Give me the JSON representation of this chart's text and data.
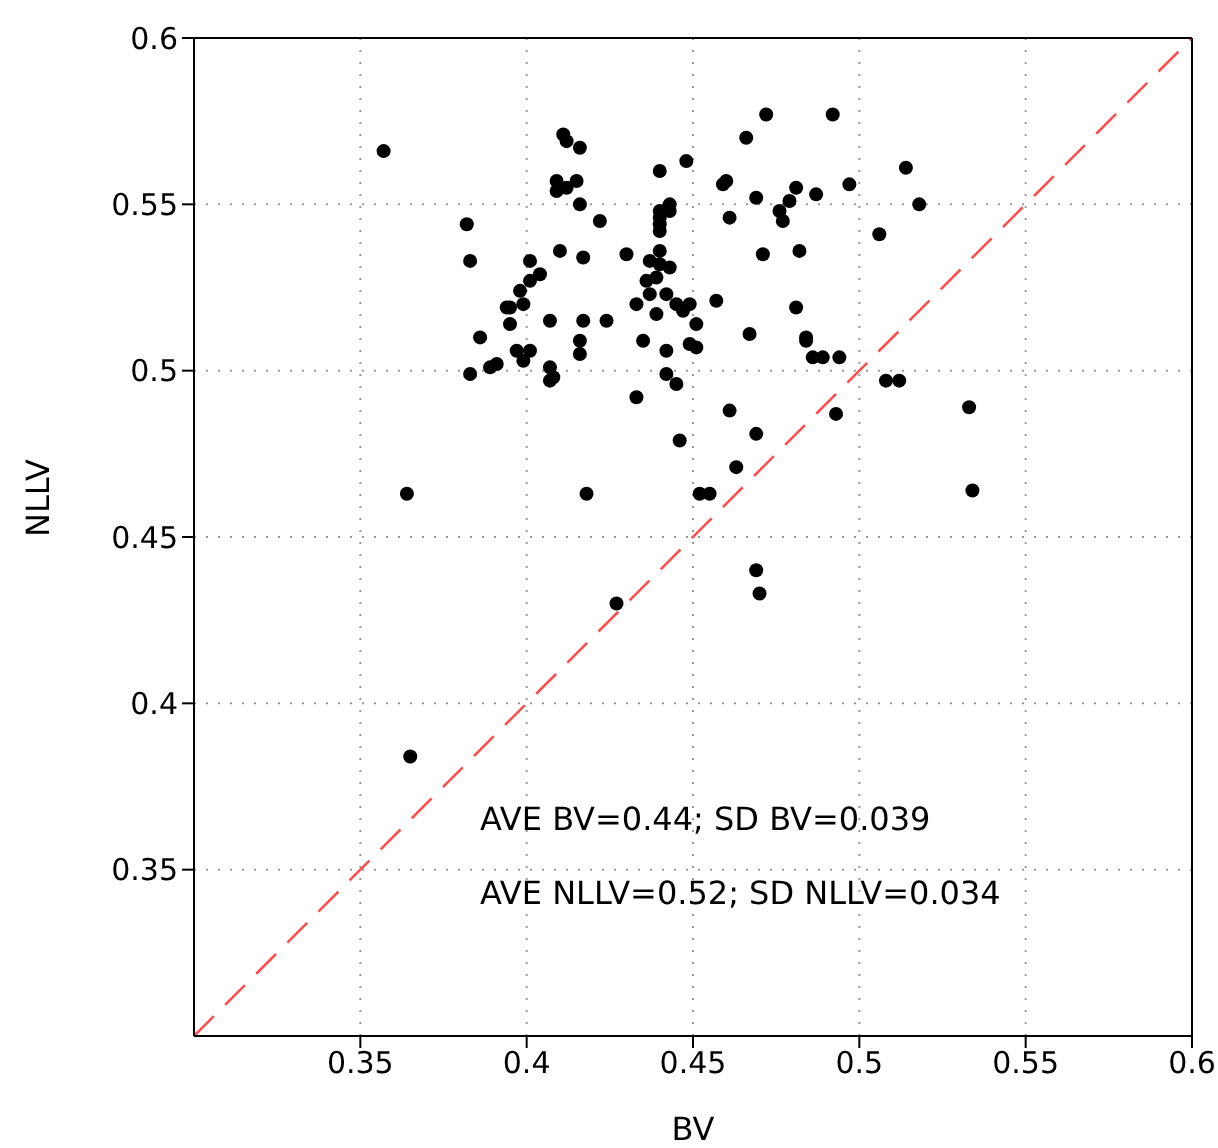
{
  "chart_data": {
    "type": "scatter",
    "xlabel": "BV",
    "ylabel": "NLLV",
    "xlim": [
      0.3,
      0.6
    ],
    "ylim": [
      0.3,
      0.6
    ],
    "xticks": [
      0.35,
      0.4,
      0.45,
      0.5,
      0.55,
      0.6
    ],
    "yticks": [
      0.35,
      0.4,
      0.45,
      0.5,
      0.55,
      0.6
    ],
    "grid": true,
    "annotations": [
      "AVE BV=0.44; SD BV=0.039",
      "AVE NLLV=0.52; SD NLLV=0.034"
    ],
    "series": [
      {
        "color": "#000000",
        "marker": "circle",
        "x": [
          0.357,
          0.365,
          0.364,
          0.382,
          0.383,
          0.386,
          0.383,
          0.389,
          0.394,
          0.395,
          0.391,
          0.399,
          0.401,
          0.401,
          0.397,
          0.399,
          0.395,
          0.398,
          0.401,
          0.404,
          0.407,
          0.407,
          0.408,
          0.407,
          0.41,
          0.409,
          0.409,
          0.412,
          0.411,
          0.412,
          0.416,
          0.415,
          0.416,
          0.417,
          0.416,
          0.416,
          0.417,
          0.418,
          0.422,
          0.424,
          0.427,
          0.43,
          0.433,
          0.433,
          0.435,
          0.436,
          0.437,
          0.437,
          0.439,
          0.439,
          0.44,
          0.44,
          0.44,
          0.44,
          0.44,
          0.44,
          0.44,
          0.442,
          0.442,
          0.442,
          0.443,
          0.443,
          0.443,
          0.445,
          0.445,
          0.446,
          0.447,
          0.448,
          0.449,
          0.449,
          0.451,
          0.451,
          0.452,
          0.455,
          0.457,
          0.459,
          0.46,
          0.461,
          0.461,
          0.463,
          0.466,
          0.467,
          0.469,
          0.469,
          0.469,
          0.47,
          0.471,
          0.472,
          0.476,
          0.477,
          0.479,
          0.481,
          0.481,
          0.482,
          0.484,
          0.484,
          0.486,
          0.487,
          0.489,
          0.492,
          0.493,
          0.494,
          0.497,
          0.506,
          0.508,
          0.512,
          0.514,
          0.518,
          0.533,
          0.534
        ],
        "values": [
          0.566,
          0.384,
          0.463,
          0.544,
          0.533,
          0.51,
          0.499,
          0.501,
          0.519,
          0.514,
          0.502,
          0.52,
          0.533,
          0.506,
          0.506,
          0.503,
          0.519,
          0.524,
          0.527,
          0.529,
          0.501,
          0.497,
          0.498,
          0.515,
          0.536,
          0.557,
          0.554,
          0.555,
          0.571,
          0.569,
          0.567,
          0.557,
          0.55,
          0.534,
          0.509,
          0.505,
          0.515,
          0.463,
          0.545,
          0.515,
          0.43,
          0.535,
          0.492,
          0.52,
          0.509,
          0.527,
          0.533,
          0.523,
          0.528,
          0.517,
          0.546,
          0.548,
          0.544,
          0.542,
          0.532,
          0.536,
          0.56,
          0.523,
          0.506,
          0.499,
          0.55,
          0.548,
          0.531,
          0.52,
          0.496,
          0.479,
          0.518,
          0.563,
          0.508,
          0.52,
          0.514,
          0.507,
          0.463,
          0.463,
          0.521,
          0.556,
          0.557,
          0.546,
          0.488,
          0.471,
          0.57,
          0.511,
          0.552,
          0.44,
          0.481,
          0.433,
          0.535,
          0.577,
          0.548,
          0.545,
          0.551,
          0.555,
          0.519,
          0.536,
          0.509,
          0.51,
          0.504,
          0.553,
          0.504,
          0.577,
          0.487,
          0.504,
          0.556,
          0.541,
          0.497,
          0.497,
          0.561,
          0.55,
          0.489,
          0.464
        ]
      },
      {
        "type": "line",
        "color": "#ff4d4d",
        "line_style": "dashed",
        "x": [
          0.3,
          0.6
        ],
        "values": [
          0.3,
          0.6
        ]
      }
    ]
  }
}
